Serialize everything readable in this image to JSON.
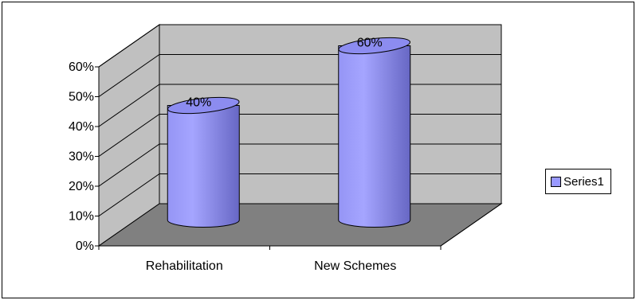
{
  "chart_data": {
    "type": "bar",
    "style": "3d-cylinder",
    "categories": [
      "Rehabilitation",
      "New Schemes"
    ],
    "series": [
      {
        "name": "Series1",
        "values": [
          0.4,
          0.6
        ],
        "data_labels": [
          "40%",
          "60%"
        ]
      }
    ],
    "ylim": [
      0,
      0.6
    ],
    "yticks": [
      0,
      0.1,
      0.2,
      0.3,
      0.4,
      0.5,
      0.6
    ],
    "ytick_labels": [
      "0%",
      "10%",
      "20%",
      "30%",
      "40%",
      "50%",
      "60%"
    ],
    "title": "",
    "xlabel": "",
    "ylabel": "",
    "grid": true,
    "legend_position": "right"
  },
  "colors": {
    "bar_fill": "#9999ff",
    "bar_fill_dark": "#6f6fcf",
    "bar_top": "#8c8cf0",
    "back_wall": "#c0c0c0",
    "side_wall": "#c0c0c0",
    "floor": "#808080",
    "outline": "#000000"
  },
  "legend": {
    "label": "Series1"
  }
}
